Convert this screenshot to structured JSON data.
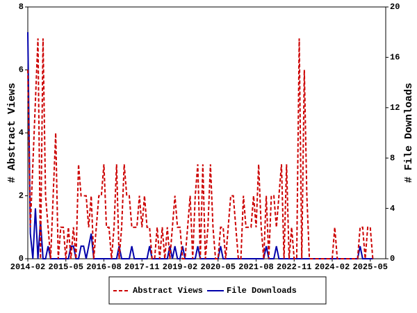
{
  "chart_data": {
    "type": "line",
    "x": [
      "2014-02",
      "2014-03",
      "2014-04",
      "2014-05",
      "2014-06",
      "2014-07",
      "2014-08",
      "2014-09",
      "2014-10",
      "2014-11",
      "2014-12",
      "2015-01",
      "2015-02",
      "2015-03",
      "2015-04",
      "2015-05",
      "2015-06",
      "2015-07",
      "2015-08",
      "2015-09",
      "2015-10",
      "2015-11",
      "2015-12",
      "2016-01",
      "2016-02",
      "2016-03",
      "2016-04",
      "2016-05",
      "2016-06",
      "2016-07",
      "2016-08",
      "2016-09",
      "2016-10",
      "2016-11",
      "2016-12",
      "2017-01",
      "2017-02",
      "2017-03",
      "2017-04",
      "2017-05",
      "2017-06",
      "2017-07",
      "2017-08",
      "2017-09",
      "2017-10",
      "2017-11",
      "2017-12",
      "2018-01",
      "2018-02",
      "2018-03",
      "2018-04",
      "2018-05",
      "2018-06",
      "2018-07",
      "2018-08",
      "2018-09",
      "2018-10",
      "2018-11",
      "2018-12",
      "2019-01",
      "2019-02",
      "2019-03",
      "2019-04",
      "2019-05",
      "2019-06",
      "2019-07",
      "2019-08",
      "2019-09",
      "2019-10",
      "2019-11",
      "2019-12",
      "2020-01",
      "2020-02",
      "2020-03",
      "2020-04",
      "2020-05",
      "2020-06",
      "2020-07",
      "2020-08",
      "2020-09",
      "2020-10",
      "2020-11",
      "2020-12",
      "2021-01",
      "2021-02",
      "2021-03",
      "2021-04",
      "2021-05",
      "2021-06",
      "2021-07",
      "2021-08",
      "2021-09",
      "2021-10",
      "2021-11",
      "2021-12",
      "2022-01",
      "2022-02",
      "2022-03",
      "2022-04",
      "2022-05",
      "2022-06",
      "2022-07",
      "2022-08",
      "2022-09",
      "2022-10",
      "2022-11",
      "2022-12",
      "2023-01",
      "2023-02",
      "2023-03",
      "2023-04",
      "2023-05",
      "2023-06",
      "2023-07",
      "2023-08",
      "2023-09",
      "2023-10",
      "2023-11",
      "2023-12",
      "2024-01",
      "2024-02",
      "2024-03",
      "2024-04",
      "2024-05",
      "2024-06",
      "2024-07",
      "2024-08",
      "2024-09",
      "2024-10",
      "2024-11",
      "2024-12",
      "2025-01",
      "2025-02",
      "2025-03",
      "2025-04",
      "2025-05",
      "2025-06"
    ],
    "xticks": [
      "2014-02",
      "2015-05",
      "2016-08",
      "2017-11",
      "2019-02",
      "2020-05",
      "2021-08",
      "2022-11",
      "2024-02",
      "2025-05"
    ],
    "ylabel": "# Abstract Views",
    "y2label": "# File Downloads",
    "ylim": [
      0,
      8
    ],
    "yticks": [
      0,
      2,
      4,
      6,
      8
    ],
    "y2lim": [
      0,
      20
    ],
    "y2ticks": [
      0,
      4,
      8,
      12,
      16,
      20
    ],
    "series": [
      {
        "name": "Abstract Views",
        "color": "#cc0000",
        "dashed": true,
        "values": [
          6,
          1,
          3,
          5,
          7,
          0,
          7,
          2,
          1,
          0,
          2,
          4,
          0,
          1,
          1,
          0,
          1,
          0,
          1,
          0,
          3,
          2,
          2,
          2,
          1,
          2,
          0,
          1,
          2,
          2,
          3,
          1,
          1,
          0,
          1,
          3,
          0,
          1,
          3,
          2,
          2,
          1,
          1,
          1,
          2,
          1,
          2,
          1,
          1,
          0,
          0,
          1,
          0,
          1,
          0,
          1,
          0,
          1,
          2,
          1,
          1,
          0,
          0,
          1,
          2,
          0,
          2,
          3,
          0,
          3,
          0,
          1,
          3,
          1,
          0,
          0,
          1,
          1,
          0,
          1,
          2,
          2,
          1,
          0,
          0,
          2,
          1,
          1,
          1,
          2,
          1,
          3,
          1,
          0,
          2,
          0,
          2,
          2,
          1,
          2,
          3,
          0,
          3,
          0,
          1,
          0,
          0,
          7,
          0,
          6,
          2,
          0,
          0,
          0,
          0,
          0,
          0,
          0,
          0,
          0,
          0,
          1,
          0,
          0,
          0,
          0,
          0,
          0,
          0,
          0,
          0,
          1,
          1,
          0,
          1,
          1,
          0
        ]
      },
      {
        "name": "File Downloads",
        "color": "#0000aa",
        "axis": "y2",
        "values": [
          18,
          2,
          0,
          4,
          0,
          3,
          0,
          0,
          1,
          0,
          0,
          0,
          0,
          0,
          0,
          0,
          0,
          1,
          1,
          0,
          0,
          1,
          1,
          0,
          1,
          2,
          0,
          0,
          0,
          0,
          0,
          0,
          0,
          0,
          0,
          0,
          1,
          0,
          0,
          0,
          0,
          1,
          0,
          0,
          0,
          0,
          0,
          0,
          1,
          0,
          0,
          0,
          0,
          0,
          0,
          0,
          1,
          0,
          1,
          0,
          0,
          1,
          0,
          0,
          0,
          0,
          0,
          1,
          0,
          0,
          0,
          0,
          0,
          0,
          0,
          0,
          1,
          0,
          0,
          0,
          0,
          0,
          0,
          0,
          0,
          0,
          0,
          0,
          0,
          0,
          0,
          0,
          0,
          0,
          1,
          0,
          0,
          0,
          1,
          0,
          0,
          0,
          0,
          0,
          0,
          0,
          0,
          0,
          0,
          0,
          0,
          0,
          0,
          0,
          0,
          0,
          0,
          0,
          0,
          0,
          0,
          0,
          0,
          0,
          0,
          0,
          0,
          0,
          0,
          0,
          0,
          1,
          0,
          0,
          0,
          0,
          0
        ]
      }
    ]
  }
}
